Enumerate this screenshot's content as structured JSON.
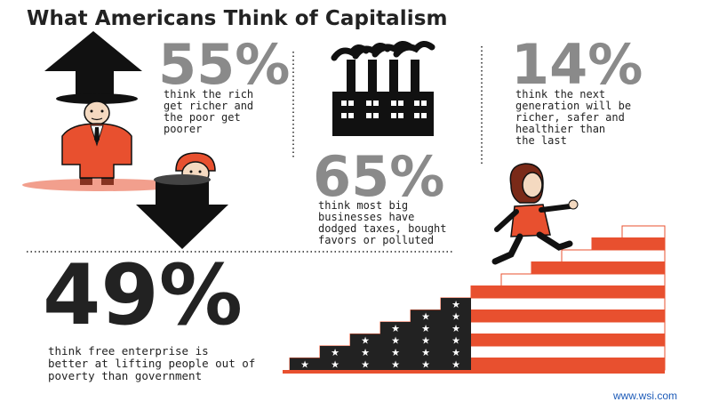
{
  "title": "What Americans Think of Capitalism",
  "stats": [
    {
      "id": "rich-poor",
      "value": "55%",
      "text_lines": [
        "think the rich",
        "get richer and",
        "the poor get",
        "poorer"
      ]
    },
    {
      "id": "next-generation",
      "value": "14%",
      "text_lines": [
        "think the next",
        "generation will be",
        "richer, safer and",
        "healthier than",
        "the last"
      ]
    },
    {
      "id": "big-business",
      "value": "65%",
      "text_lines": [
        "think most big",
        "businesses have",
        "dodged taxes, bought",
        "favors or polluted"
      ]
    },
    {
      "id": "free-enterprise",
      "value": "49%",
      "text_lines": [
        "think free enterprise is",
        "better at lifting people out of",
        "poverty than government"
      ]
    }
  ],
  "footer": {
    "source": "www.wsi.com"
  },
  "icons": [
    "up-arrow-icon",
    "down-arrow-icon",
    "factory-icon",
    "rich-man-illustration",
    "poor-person-illustration",
    "running-woman-illustration",
    "flag-staircase-illustration"
  ],
  "colors": {
    "accent_red": "#e8502f",
    "grey_text": "#8a8a8a",
    "dark": "#222222",
    "link_blue": "#1d5bb8"
  }
}
